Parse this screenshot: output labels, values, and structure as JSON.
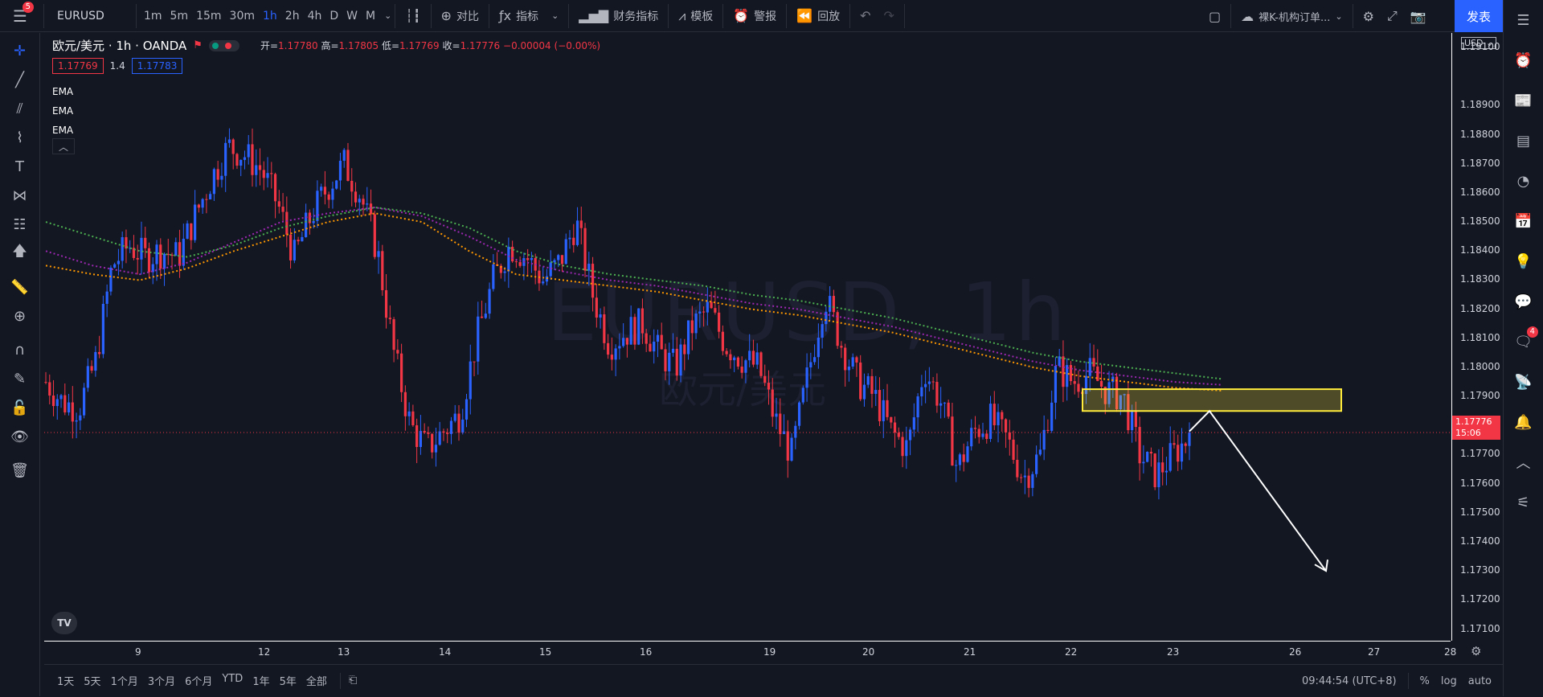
{
  "topbar": {
    "menu_badge": "5",
    "symbol": "EURUSD",
    "intervals": [
      "1m",
      "5m",
      "15m",
      "30m",
      "1h",
      "2h",
      "4h",
      "D",
      "W",
      "M"
    ],
    "active_interval": "1h",
    "compare": "对比",
    "indicators": "指标",
    "financials": "财务指标",
    "templates": "模板",
    "alert": "警报",
    "replay": "回放",
    "layout_name": "裸K-机构订单...",
    "publish": "发表"
  },
  "legend": {
    "title": "欧元/美元 · 1h · OANDA",
    "open_label": "开=",
    "open": "1.17780",
    "high_label": "高=",
    "high": "1.17805",
    "low_label": "低=",
    "low": "1.17769",
    "close_label": "收=",
    "close": "1.17776",
    "change": "−0.00004 (−0.00%)",
    "bid": "1.17769",
    "spread": "1.4",
    "ask": "1.17783",
    "indicators": [
      "EMA",
      "EMA",
      "EMA"
    ]
  },
  "watermark": {
    "symbol": "EURUSD, 1h",
    "desc": "欧元/美元"
  },
  "price_axis": {
    "currency": "USD",
    "current_price": "1.17776",
    "countdown": "15:06"
  },
  "bottombar": {
    "ranges": [
      "1天",
      "5天",
      "1个月",
      "3个月",
      "6个月",
      "YTD",
      "1年",
      "5年",
      "全部"
    ],
    "clock": "09:44:54 (UTC+8)",
    "percent": "%",
    "log": "log",
    "auto": "auto"
  },
  "colors": {
    "up": "#2962ff",
    "down": "#f23645",
    "ema_fast": "#ff9800",
    "ema_mid": "#9c27b0",
    "ema_slow": "#4caf50",
    "zone": "#ffeb3b"
  },
  "chart_data": {
    "type": "candlestick",
    "title": "欧元/美元 · 1h · OANDA",
    "x_ticks": [
      "9",
      "12",
      "13",
      "14",
      "15",
      "16",
      "19",
      "20",
      "21",
      "22",
      "23",
      "26",
      "27",
      "28"
    ],
    "y_ticks": [
      1.191,
      1.189,
      1.188,
      1.187,
      1.186,
      1.185,
      1.184,
      1.183,
      1.182,
      1.181,
      1.18,
      1.179,
      1.178,
      1.177,
      1.176,
      1.175,
      1.174,
      1.173,
      1.172,
      1.171
    ],
    "ylim": [
      1.1706,
      1.1915
    ],
    "current_price": 1.17776,
    "close_path": [
      1.1795,
      1.1788,
      1.1786,
      1.1802,
      1.1835,
      1.1842,
      1.1838,
      1.184,
      1.1838,
      1.1852,
      1.1865,
      1.1876,
      1.1873,
      1.1868,
      1.1856,
      1.1838,
      1.1852,
      1.1862,
      1.187,
      1.1859,
      1.184,
      1.1805,
      1.178,
      1.1772,
      1.1778,
      1.1784,
      1.181,
      1.183,
      1.1842,
      1.1838,
      1.183,
      1.1836,
      1.185,
      1.1825,
      1.1808,
      1.1812,
      1.1815,
      1.1805,
      1.18,
      1.1814,
      1.182,
      1.1808,
      1.1803,
      1.18,
      1.1782,
      1.177,
      1.1798,
      1.1825,
      1.1808,
      1.1795,
      1.179,
      1.1778,
      1.1772,
      1.18,
      1.1788,
      1.1765,
      1.1778,
      1.1782,
      1.1775,
      1.1762,
      1.177,
      1.18,
      1.1795,
      1.1798,
      1.1792,
      1.179,
      1.177,
      1.1763,
      1.177,
      1.1776
    ],
    "ema": [
      {
        "values": [
          1.1835,
          1.1832,
          1.183,
          1.1834,
          1.184,
          1.1845,
          1.185,
          1.1853,
          1.185,
          1.184,
          1.1832,
          1.183,
          1.1828,
          1.1826,
          1.1823,
          1.182,
          1.1818,
          1.1815,
          1.1812,
          1.1808,
          1.1804,
          1.18,
          1.1797,
          1.1795,
          1.1793,
          1.1792
        ]
      },
      {
        "values": [
          1.184,
          1.1835,
          1.1832,
          1.1836,
          1.1843,
          1.185,
          1.1853,
          1.1855,
          1.1852,
          1.1845,
          1.1837,
          1.1833,
          1.183,
          1.1828,
          1.1825,
          1.1822,
          1.182,
          1.1817,
          1.1814,
          1.181,
          1.1806,
          1.1802,
          1.1799,
          1.1797,
          1.1795,
          1.1794
        ]
      },
      {
        "values": [
          1.185,
          1.1845,
          1.184,
          1.1838,
          1.1842,
          1.1848,
          1.1852,
          1.1855,
          1.1853,
          1.1848,
          1.184,
          1.1835,
          1.1832,
          1.183,
          1.1828,
          1.1825,
          1.1823,
          1.182,
          1.1817,
          1.1813,
          1.1809,
          1.1805,
          1.1802,
          1.18,
          1.1798,
          1.1796
        ]
      }
    ],
    "zone": {
      "low": 1.1785,
      "high": 1.17925
    },
    "arrow": {
      "from": 1.1778,
      "peak": 1.1785,
      "to": 1.173
    }
  }
}
